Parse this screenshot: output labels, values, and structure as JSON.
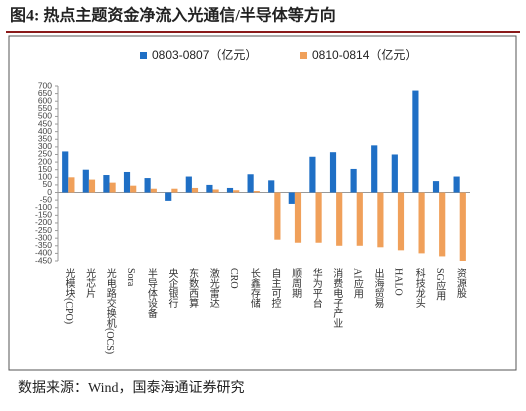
{
  "chart_data": {
    "type": "bar",
    "title": "图4: 热点主题资金净流入光通信/半导体等方向",
    "source": "数据来源：Wind，国泰海通证券研究",
    "categories": [
      "光模块(CPO)",
      "光芯片",
      "光电路交换机(OCS)",
      "Sora",
      "半导体设备",
      "央企银行",
      "东数西算",
      "激光雷达",
      "CRO",
      "长鑫存储",
      "自主可控",
      "顺周期",
      "华为平台",
      "消费电子产业",
      "AI应用",
      "出海贸易",
      "HALO",
      "科技龙头",
      "SG应用",
      "资源股"
    ],
    "series": [
      {
        "name": "0803-0807（亿元）",
        "color": "#1f6fc5",
        "values": [
          270,
          150,
          115,
          135,
          95,
          -55,
          105,
          50,
          30,
          120,
          80,
          -75,
          235,
          265,
          155,
          310,
          250,
          670,
          75,
          105
        ]
      },
      {
        "name": "0810-0814（亿元）",
        "color": "#f0a05a",
        "values": [
          100,
          85,
          65,
          45,
          25,
          25,
          30,
          20,
          15,
          10,
          -310,
          -330,
          -330,
          -350,
          -350,
          -360,
          -380,
          -400,
          -420,
          -450
        ]
      }
    ],
    "ylim": [
      -450,
      700
    ],
    "yticks": [
      -450,
      -400,
      -350,
      -300,
      -250,
      -200,
      -150,
      -100,
      -50,
      0,
      50,
      100,
      150,
      200,
      250,
      300,
      350,
      400,
      450,
      500,
      550,
      600,
      650,
      700
    ]
  }
}
